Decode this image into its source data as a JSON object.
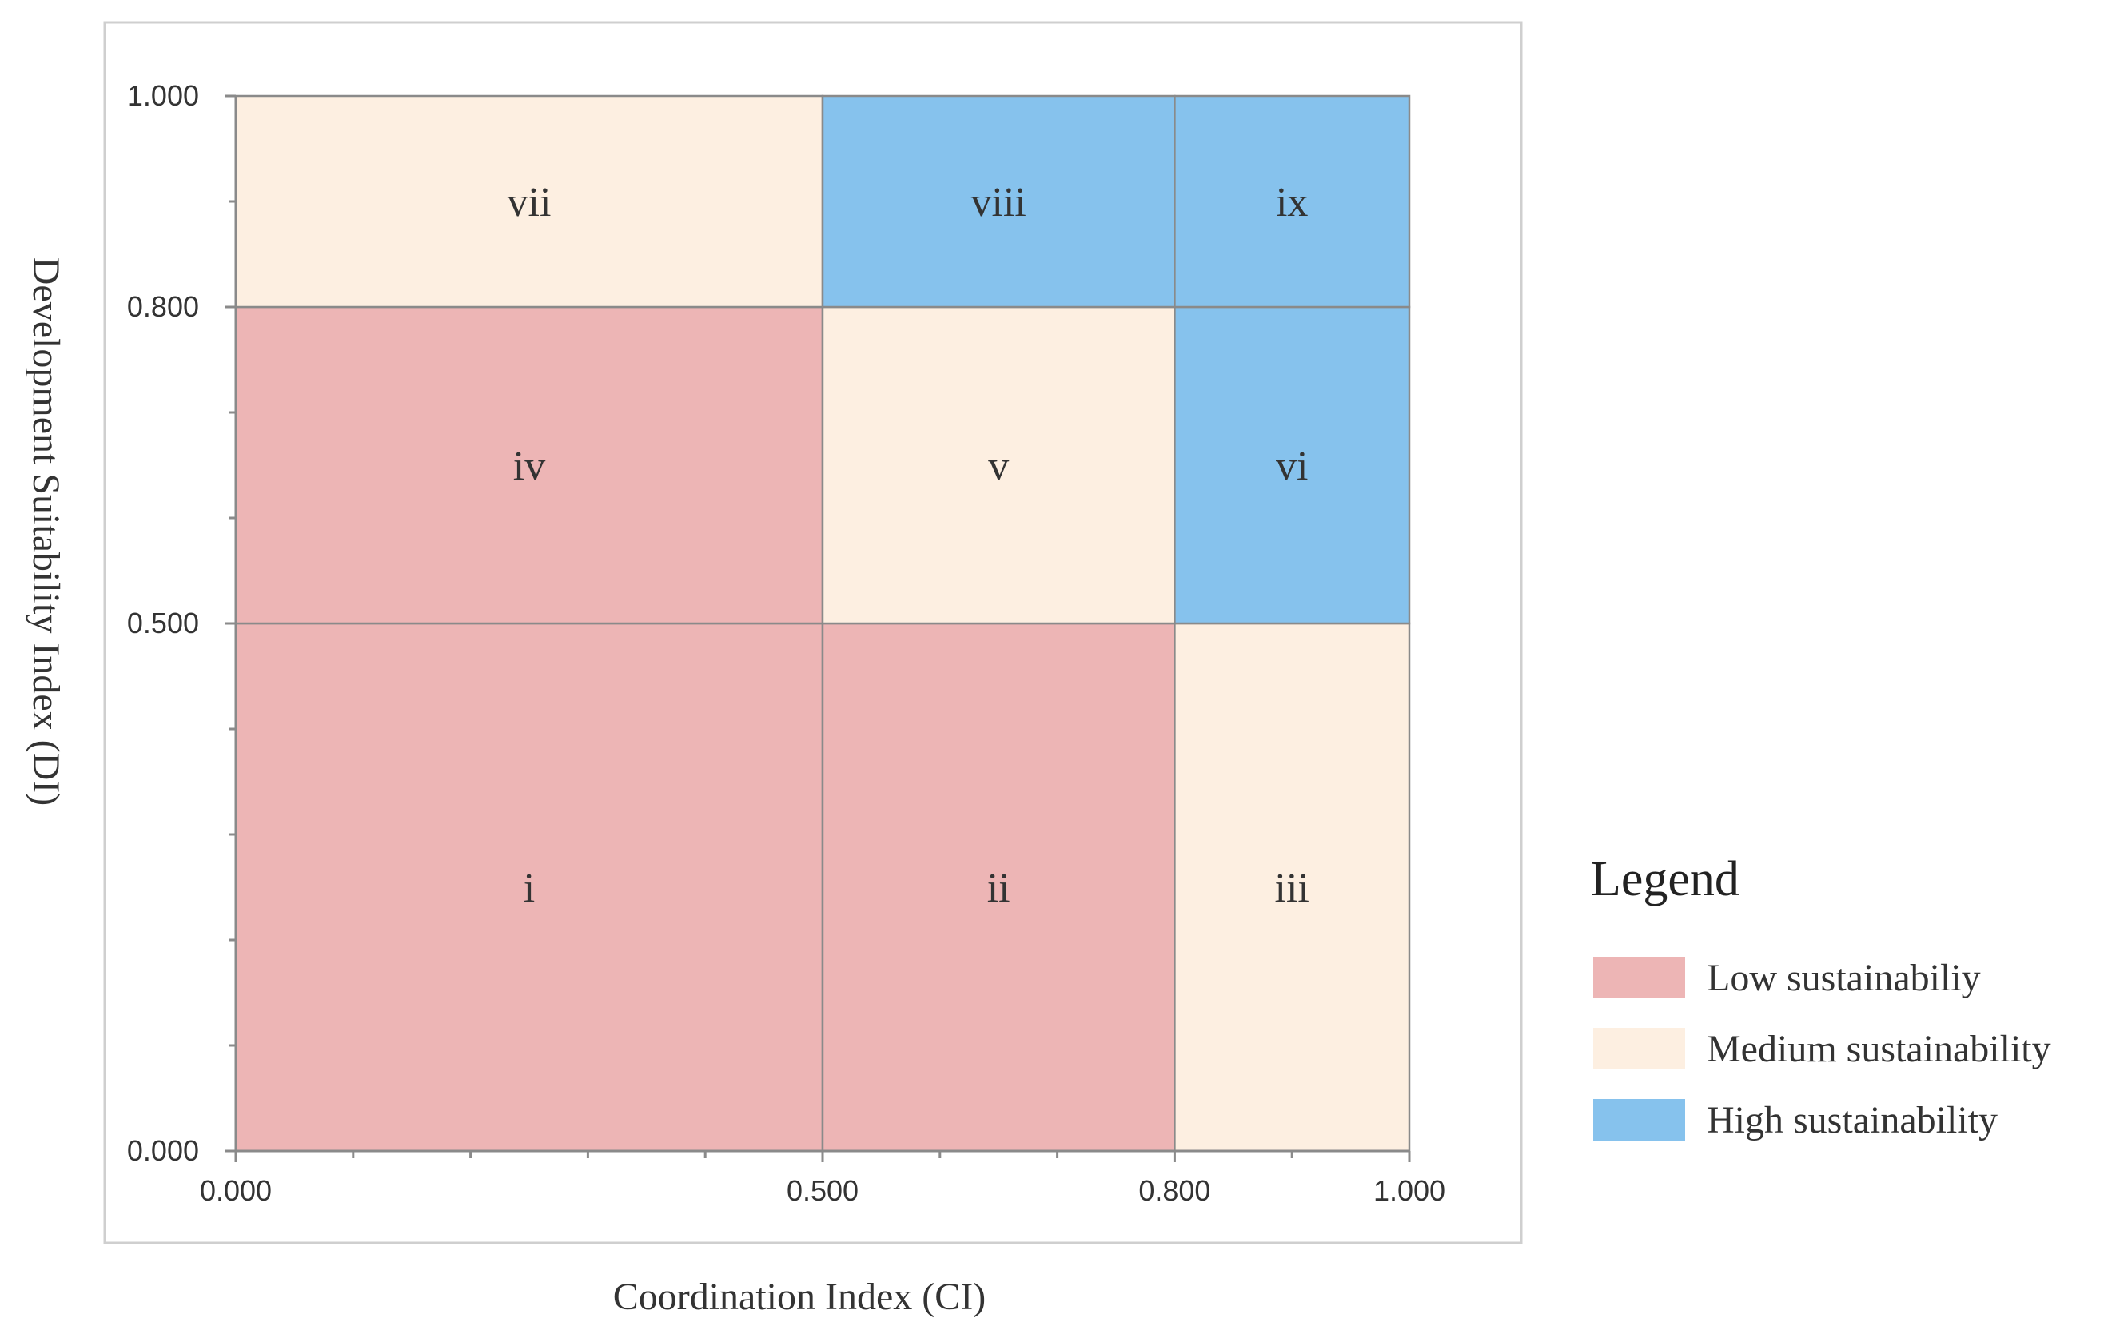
{
  "chart_data": {
    "type": "heatmap",
    "title": "",
    "xlabel": "Coordination  Index (CI)",
    "ylabel": "Development Suitability Index  (DI)",
    "xlim": [
      0,
      1
    ],
    "ylim": [
      0,
      1
    ],
    "x_ticks": [
      0.0,
      0.5,
      0.8,
      1.0
    ],
    "y_ticks": [
      0.0,
      0.5,
      0.8,
      1.0
    ],
    "x_tick_labels": [
      "0.000",
      "0.500",
      "0.800",
      "1.000"
    ],
    "y_tick_labels": [
      "0.000",
      "0.500",
      "0.800",
      "1.000"
    ],
    "x_minor_ticks": [
      0.1,
      0.2,
      0.3,
      0.4,
      0.6,
      0.7,
      0.9
    ],
    "y_minor_ticks": [
      0.1,
      0.2,
      0.3,
      0.4,
      0.6,
      0.7,
      0.9
    ],
    "regions": [
      {
        "label": "i",
        "ci": [
          0.0,
          0.5
        ],
        "di": [
          0.0,
          0.5
        ],
        "class": "low"
      },
      {
        "label": "ii",
        "ci": [
          0.5,
          0.8
        ],
        "di": [
          0.0,
          0.5
        ],
        "class": "low"
      },
      {
        "label": "iii",
        "ci": [
          0.8,
          1.0
        ],
        "di": [
          0.0,
          0.5
        ],
        "class": "medium"
      },
      {
        "label": "iv",
        "ci": [
          0.0,
          0.5
        ],
        "di": [
          0.5,
          0.8
        ],
        "class": "low"
      },
      {
        "label": "v",
        "ci": [
          0.5,
          0.8
        ],
        "di": [
          0.5,
          0.8
        ],
        "class": "medium"
      },
      {
        "label": "vi",
        "ci": [
          0.8,
          1.0
        ],
        "di": [
          0.5,
          0.8
        ],
        "class": "high"
      },
      {
        "label": "vii",
        "ci": [
          0.0,
          0.5
        ],
        "di": [
          0.8,
          1.0
        ],
        "class": "medium"
      },
      {
        "label": "viii",
        "ci": [
          0.5,
          0.8
        ],
        "di": [
          0.8,
          1.0
        ],
        "class": "high"
      },
      {
        "label": "ix",
        "ci": [
          0.8,
          1.0
        ],
        "di": [
          0.8,
          1.0
        ],
        "class": "high"
      }
    ],
    "legend": {
      "title": "Legend",
      "position": "right",
      "items": [
        {
          "key": "low",
          "label": "Low sustainabiliy",
          "color": "#edb5b5"
        },
        {
          "key": "medium",
          "label": "Medium sustainability",
          "color": "#fdefe1"
        },
        {
          "key": "high",
          "label": "High sustainability",
          "color": "#86c2ed"
        }
      ]
    }
  }
}
